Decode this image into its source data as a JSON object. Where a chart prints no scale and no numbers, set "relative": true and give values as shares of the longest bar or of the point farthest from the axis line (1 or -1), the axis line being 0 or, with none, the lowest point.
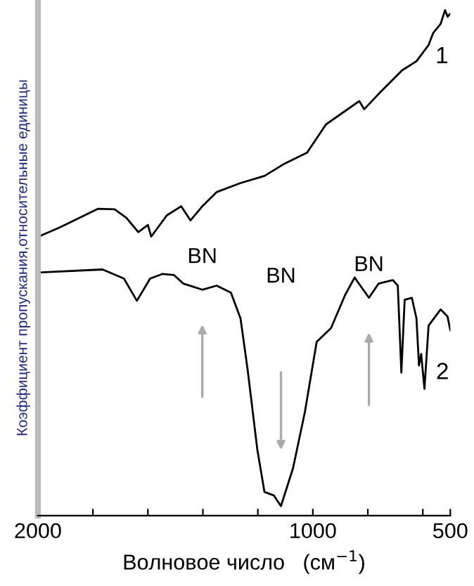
{
  "chart_data": {
    "type": "line",
    "relative": true,
    "xlabel": "Волновое число   (см$^{−1}$)",
    "ylabel": "Коэффициент пропускания,относительные единицы",
    "xlim": [
      2000,
      500
    ],
    "xticks": [
      2000,
      {
        "value": 1800,
        "label": null
      },
      {
        "value": 1600,
        "label": null
      },
      {
        "value": 1400,
        "label": null
      },
      {
        "value": 1200,
        "label": null
      },
      1000,
      {
        "value": 800,
        "label": null
      },
      {
        "value": 600,
        "label": null
      },
      500
    ],
    "grid": false,
    "marker": "none",
    "line_style": "solid",
    "annotations": [
      {
        "text": "BN",
        "x": 1402,
        "y": 0.447
      },
      "BN",
      {
        "text": "BN",
        "x": 796,
        "y": 0.431
      }
    ],
    "series": [
      {
        "name": "1",
        "color": "#000000",
        "x": [
          1998,
          1921,
          1782,
          1721,
          1678,
          1635,
          1600,
          1588,
          1531,
          1479,
          1445,
          1402,
          1350,
          1263,
          1176,
          1107,
          1021,
          952,
          831,
          813,
          761,
          675,
          623,
          579,
          562,
          535,
          519,
          510,
          502
        ],
        "values": [
          0.552,
          0.57,
          0.607,
          0.606,
          0.589,
          0.561,
          0.575,
          0.552,
          0.594,
          0.612,
          0.584,
          0.612,
          0.64,
          0.658,
          0.672,
          0.695,
          0.718,
          0.774,
          0.82,
          0.804,
          0.834,
          0.881,
          0.899,
          0.931,
          0.955,
          0.973,
          1.0,
          0.987,
          0.992
        ]
      },
      {
        "name": "2",
        "color": "#000000",
        "x": [
          1998,
          1765,
          1687,
          1640,
          1592,
          1548,
          1505,
          1471,
          1402,
          1350,
          1298,
          1263,
          1237,
          1202,
          1176,
          1142,
          1116,
          1072,
          1029,
          986,
          934,
          883,
          848,
          796,
          761,
          709,
          691,
          678,
          666,
          640,
          623,
          614,
          606,
          594,
          579,
          535,
          510,
          500
        ],
        "values": [
          0.481,
          0.487,
          0.469,
          0.425,
          0.469,
          0.478,
          0.476,
          0.459,
          0.447,
          0.455,
          0.441,
          0.39,
          0.288,
          0.131,
          0.047,
          0.04,
          0.019,
          0.094,
          0.205,
          0.344,
          0.371,
          0.436,
          0.471,
          0.431,
          0.459,
          0.466,
          0.455,
          0.283,
          0.427,
          0.431,
          0.39,
          0.297,
          0.32,
          0.251,
          0.376,
          0.408,
          0.394,
          0.367
        ]
      }
    ]
  }
}
